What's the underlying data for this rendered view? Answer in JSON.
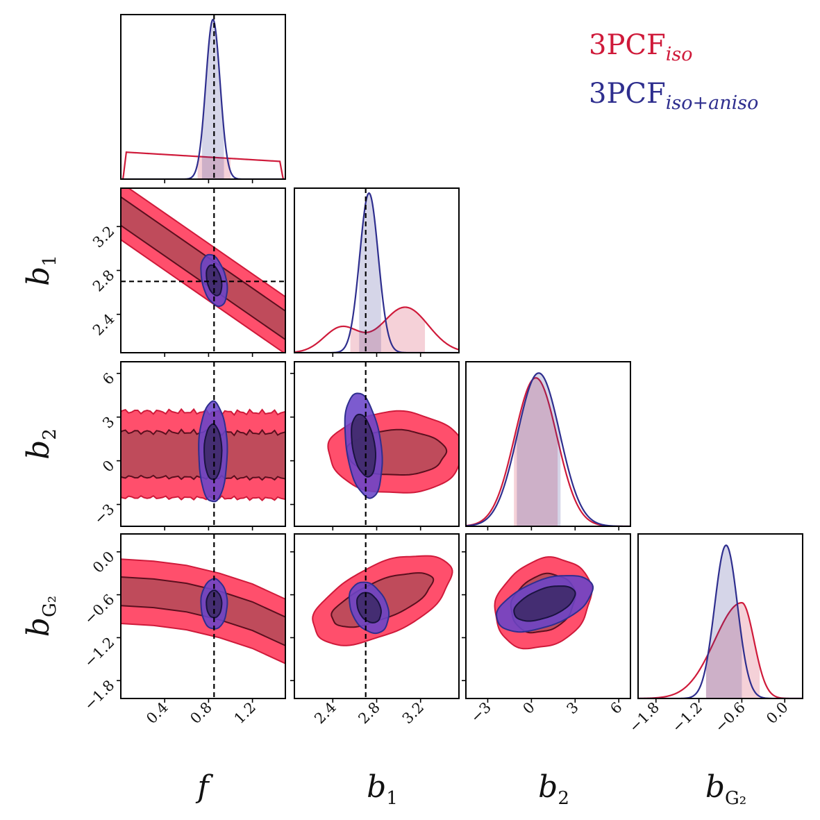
{
  "chart_data": {
    "type": "corner",
    "colors": {
      "iso": "#cf1a3a",
      "iso_fill": "#ff4060",
      "iso_dark": "#b84a5a",
      "aniso": "#2e2e8e",
      "aniso_fill": "#6a44c8",
      "aniso_dark": "#3f2a6a"
    },
    "legend": [
      {
        "series": "iso",
        "label": "3PCF",
        "subscript": "iso"
      },
      {
        "series": "aniso",
        "label": "3PCF",
        "subscript": "iso+aniso"
      }
    ],
    "parameters": [
      {
        "key": "f",
        "label": "f",
        "subscript": "",
        "range": [
          0.0,
          1.5
        ],
        "ticks": [
          0.4,
          0.8,
          1.2
        ],
        "tick_labels": [
          "0.4",
          "0.8",
          "1.2"
        ],
        "truth": 0.85
      },
      {
        "key": "b1",
        "label": "b",
        "subscript": "1",
        "range": [
          2.05,
          3.55
        ],
        "ticks": [
          2.4,
          2.8,
          3.2
        ],
        "tick_labels": [
          "2.4",
          "2.8",
          "3.2"
        ],
        "truth": 2.7
      },
      {
        "key": "b2",
        "label": "b",
        "subscript": "2",
        "range": [
          -4.5,
          6.8
        ],
        "ticks": [
          -3,
          0,
          3,
          6
        ],
        "tick_labels": [
          "−3",
          "0",
          "3",
          "6"
        ],
        "truth": null
      },
      {
        "key": "bG2",
        "label": "b",
        "subscript": "G₂",
        "range": [
          -2.05,
          0.25
        ],
        "ticks": [
          -1.8,
          -1.2,
          -0.6,
          0.0
        ],
        "tick_labels": [
          "−1.8",
          "−1.2",
          "−0.6",
          "0.0"
        ],
        "truth": null
      }
    ],
    "marginals": [
      {
        "param": "f",
        "iso": {
          "shape": "flat",
          "lo": 0.02,
          "hi": 1.48,
          "level_left": 0.17,
          "level_right": 0.11,
          "band": [
            0.7,
            1.0
          ]
        },
        "aniso": {
          "shape": "gauss",
          "mean": 0.84,
          "sd": 0.065,
          "band": [
            0.74,
            0.94
          ]
        }
      },
      {
        "param": "b1",
        "iso": {
          "shape": "mixture",
          "components": [
            {
              "mean": 2.48,
              "sd": 0.16,
              "w": 0.5
            },
            {
              "mean": 3.06,
              "sd": 0.21,
              "w": 0.9
            }
          ],
          "scale": 0.3,
          "band": [
            2.56,
            3.24
          ]
        },
        "aniso": {
          "shape": "gauss",
          "mean": 2.73,
          "sd": 0.085,
          "band": [
            2.64,
            2.84
          ]
        }
      },
      {
        "param": "b2",
        "iso": {
          "shape": "gauss",
          "mean": 0.3,
          "sd": 1.45,
          "band": [
            -1.2,
            1.8
          ],
          "peak": 0.93
        },
        "aniso": {
          "shape": "gauss",
          "mean": 0.5,
          "sd": 1.45,
          "band": [
            -1.0,
            2.0
          ],
          "peak": 0.96
        }
      },
      {
        "param": "bG2",
        "iso": {
          "shape": "skew",
          "mean": -0.6,
          "sd_left": 0.38,
          "sd_right": 0.17,
          "band": [
            -1.1,
            -0.35
          ],
          "peak": 0.6
        },
        "aniso": {
          "shape": "gauss",
          "mean": -0.82,
          "sd": 0.16,
          "band": [
            -1.1,
            -0.6
          ],
          "peak": 0.96
        }
      }
    ],
    "joints": [
      {
        "x": "f",
        "y": "b1",
        "iso": {
          "type": "line",
          "p1": [
            0.0,
            3.34
          ],
          "p2": [
            1.5,
            2.3
          ],
          "w68": 0.13,
          "w95": 0.26
        },
        "aniso": {
          "type": "ellipse",
          "center": [
            0.85,
            2.71
          ],
          "rx68": 0.07,
          "ry68": 0.13,
          "rx95": 0.12,
          "ry95": 0.22,
          "tilt_slope": -0.7
        }
      },
      {
        "x": "f",
        "y": "b2",
        "iso": {
          "type": "band",
          "left": [
            0.0,
            0.45
          ],
          "right": [
            1.5,
            0.35
          ],
          "hw68": 1.55,
          "hw95": 2.95
        },
        "aniso": {
          "type": "ellipse",
          "center": [
            0.84,
            0.6
          ],
          "rx68": 0.08,
          "ry68": 1.9,
          "rx95": 0.13,
          "ry95": 3.45,
          "tilt_slope": 0
        }
      },
      {
        "x": "f",
        "y": "bG2",
        "iso": {
          "type": "curve",
          "points": [
            [
              0.0,
              -0.54
            ],
            [
              0.3,
              -0.58
            ],
            [
              0.6,
              -0.64
            ],
            [
              0.9,
              -0.75
            ],
            [
              1.2,
              -0.9
            ],
            [
              1.5,
              -1.2
            ]
          ],
          "w68": 0.2,
          "w95": 0.45
        },
        "aniso": {
          "type": "ellipse",
          "center": [
            0.85,
            -0.73
          ],
          "rx68": 0.07,
          "ry68": 0.19,
          "rx95": 0.12,
          "ry95": 0.35,
          "tilt_slope": 0
        }
      },
      {
        "x": "b1",
        "y": "b2",
        "iso": {
          "type": "ellipse",
          "center": [
            2.98,
            0.55
          ],
          "rx68": 0.45,
          "ry68": 1.55,
          "rx95": 0.62,
          "ry95": 2.8,
          "tilt_slope": 0
        },
        "aniso": {
          "type": "ellipse",
          "center": [
            2.68,
            1.05
          ],
          "rx68": 0.11,
          "ry68": 2.0,
          "rx95": 0.17,
          "ry95": 3.4,
          "tilt_slope": -7
        }
      },
      {
        "x": "b1",
        "y": "bG2",
        "iso": {
          "type": "ellipse",
          "center": [
            2.85,
            -0.67
          ],
          "rx68": 0.46,
          "ry68": 0.28,
          "rx95": 0.63,
          "ry95": 0.52,
          "tilt_slope": 0.55
        },
        "aniso": {
          "type": "ellipse",
          "center": [
            2.73,
            -0.78
          ],
          "rx68": 0.11,
          "ry68": 0.2,
          "rx95": 0.18,
          "ry95": 0.34,
          "tilt_slope": -0.6
        }
      },
      {
        "x": "b2",
        "y": "bG2",
        "iso": {
          "type": "ellipse",
          "center": [
            0.8,
            -0.72
          ],
          "rx68": 2.2,
          "ry68": 0.4,
          "rx95": 3.3,
          "ry95": 0.62,
          "tilt_slope": 0.04
        },
        "aniso": {
          "type": "ellipse",
          "center": [
            0.9,
            -0.72
          ],
          "rx68": 2.1,
          "ry68": 0.21,
          "rx95": 3.3,
          "ry95": 0.34,
          "tilt_slope": 0.06
        }
      }
    ]
  }
}
